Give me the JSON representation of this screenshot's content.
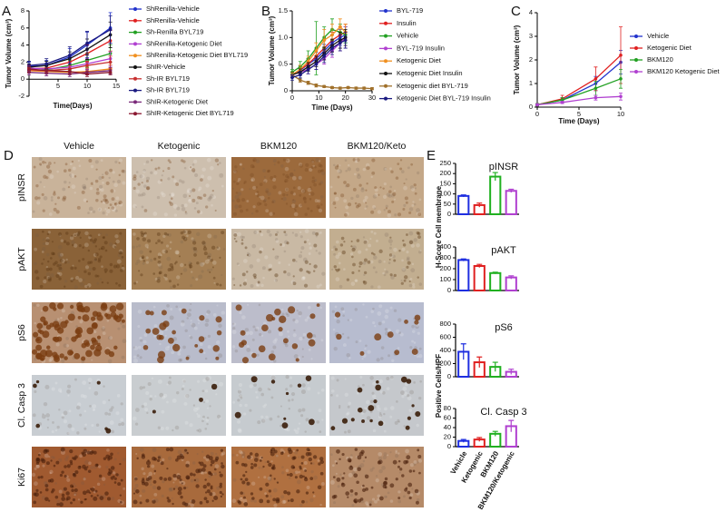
{
  "figure": {
    "panel_d": "D",
    "image_columns": [
      "Vehicle",
      "Ketogenic",
      "BKM120",
      "BKM120/Keto"
    ],
    "image_rows": [
      "pINSR",
      "pAKT",
      "pS6",
      "Cl. Casp 3",
      "Ki67"
    ]
  },
  "chart_data": [
    {
      "type": "line",
      "panel": "A",
      "xlabel": "Time(Days)",
      "ylabel": "Tumor Volume (cm³)",
      "x": [
        0,
        3,
        7,
        10,
        14
      ],
      "xlim": [
        0,
        15
      ],
      "xticks": [
        5,
        10,
        15
      ],
      "ylim": [
        -2,
        8
      ],
      "yticks": [
        -2,
        0,
        2,
        4,
        6,
        8
      ],
      "series": [
        {
          "name": "ShRenilla-Vehicle",
          "color": "#2233cc",
          "values": [
            1.5,
            1.6,
            2.6,
            4.0,
            6.0
          ],
          "errors": [
            0.5,
            0.6,
            1.0,
            1.5,
            1.8
          ]
        },
        {
          "name": "ShRenilla-Vehicle",
          "color": "#e02020",
          "values": [
            1.2,
            1.3,
            2.0,
            3.0,
            4.5
          ],
          "errors": [
            0.4,
            0.5,
            0.8,
            1.0,
            1.2
          ]
        },
        {
          "name": "Sh-Renilla BYL719",
          "color": "#22a022",
          "values": [
            1.0,
            1.1,
            1.6,
            2.2,
            3.0
          ],
          "errors": [
            0.3,
            0.4,
            0.6,
            0.8,
            1.0
          ]
        },
        {
          "name": "ShRenilla-Ketogenic Diet",
          "color": "#b040d0",
          "values": [
            1.3,
            1.2,
            1.4,
            1.8,
            2.4
          ],
          "errors": [
            0.4,
            0.4,
            0.5,
            0.6,
            0.8
          ]
        },
        {
          "name": "ShRenilla-Ketogenic Diet BYL719",
          "color": "#f09020",
          "values": [
            1.0,
            0.9,
            0.8,
            0.9,
            1.2
          ],
          "errors": [
            0.3,
            0.3,
            0.3,
            0.4,
            0.5
          ]
        },
        {
          "name": "ShIR-Vehicle",
          "color": "#111111",
          "values": [
            1.4,
            1.6,
            2.4,
            3.5,
            5.2
          ],
          "errors": [
            0.4,
            0.5,
            0.8,
            1.2,
            1.5
          ]
        },
        {
          "name": "Sh-IR BYL719",
          "color": "#c83030",
          "values": [
            1.1,
            1.0,
            1.2,
            1.6,
            2.0
          ],
          "errors": [
            0.3,
            0.3,
            0.4,
            0.5,
            0.7
          ]
        },
        {
          "name": "Sh-IR BYL719",
          "color": "#1a1a80",
          "values": [
            1.6,
            1.8,
            2.8,
            4.2,
            5.8
          ],
          "errors": [
            0.5,
            0.6,
            1.0,
            1.4,
            1.6
          ]
        },
        {
          "name": "ShIR-Ketogenic Diet",
          "color": "#7a2a7a",
          "values": [
            0.8,
            0.7,
            0.6,
            0.8,
            1.0
          ],
          "errors": [
            0.3,
            0.3,
            0.3,
            0.3,
            0.4
          ]
        },
        {
          "name": "ShIR-Ketogenic Diet BYL719",
          "color": "#8a1830",
          "values": [
            1.2,
            1.0,
            0.9,
            0.6,
            0.8
          ],
          "errors": [
            0.4,
            0.3,
            0.3,
            0.3,
            0.3
          ]
        }
      ]
    },
    {
      "type": "line",
      "panel": "B",
      "xlabel": "Time (Days)",
      "ylabel": "Tumor Volume (cm³)",
      "x": [
        0,
        3,
        6,
        9,
        12,
        15,
        18,
        20
      ],
      "xlim": [
        0,
        30
      ],
      "xticks": [
        0,
        10,
        20,
        30
      ],
      "ylim": [
        0,
        1.5
      ],
      "yticks": [
        0,
        0.5,
        {
          "value": 1,
          "label": "1.0"
        },
        1.5
      ],
      "series": [
        {
          "name": "BYL-719",
          "color": "#2233cc",
          "values": [
            0.3,
            0.38,
            0.5,
            0.6,
            0.75,
            0.9,
            1.0,
            1.05
          ],
          "errors": [
            0.05,
            0.08,
            0.1,
            0.12,
            0.12,
            0.15,
            0.15,
            0.15
          ]
        },
        {
          "name": "Insulin",
          "color": "#e02020",
          "values": [
            0.3,
            0.4,
            0.5,
            0.65,
            0.8,
            0.95,
            1.05,
            1.1
          ],
          "errors": [
            0.05,
            0.08,
            0.1,
            0.12,
            0.15,
            0.15,
            0.15,
            0.15
          ]
        },
        {
          "name": "Vehicle",
          "color": "#22a022",
          "values": [
            0.35,
            0.45,
            0.6,
            0.8,
            1.0,
            1.15,
            1.1,
            1.05
          ],
          "errors": [
            0.05,
            0.1,
            0.15,
            0.5,
            0.2,
            0.2,
            0.15,
            0.15
          ]
        },
        {
          "name": "BYL-719 Insulin",
          "color": "#b040d0",
          "values": [
            0.3,
            0.35,
            0.4,
            0.5,
            0.6,
            0.75,
            0.9,
            1.0
          ],
          "errors": [
            0.05,
            0.06,
            0.08,
            0.1,
            0.1,
            0.12,
            0.15,
            0.2
          ]
        },
        {
          "name": "Ketogenic Diet",
          "color": "#f09020",
          "values": [
            0.3,
            0.4,
            0.55,
            0.75,
            0.95,
            1.05,
            1.2,
            1.1
          ],
          "errors": [
            0.05,
            0.08,
            0.1,
            0.15,
            0.2,
            0.2,
            0.15,
            0.15
          ]
        },
        {
          "name": "Ketogenic Diet Insulin",
          "color": "#111111",
          "values": [
            0.3,
            0.35,
            0.45,
            0.55,
            0.7,
            0.85,
            0.95,
            1.0
          ],
          "errors": [
            0.05,
            0.06,
            0.08,
            0.1,
            0.12,
            0.12,
            0.15,
            0.15
          ]
        },
        {
          "name": "Ketogenic diet BYL-719",
          "color": "#a0702a",
          "x": [
            0,
            3,
            6,
            9,
            12,
            15,
            18,
            21,
            24,
            27,
            30
          ],
          "values": [
            0.3,
            0.2,
            0.15,
            0.1,
            0.08,
            0.06,
            0.05,
            0.06,
            0.05,
            0.05,
            0.04
          ],
          "errors": [
            0.05,
            0.04,
            0.03,
            0.03,
            0.02,
            0.02,
            0.02,
            0.02,
            0.02,
            0.02,
            0.02
          ]
        },
        {
          "name": "Ketogenic Diet BYL-719 Insulin",
          "color": "#1a1a80",
          "values": [
            0.25,
            0.3,
            0.4,
            0.5,
            0.65,
            0.8,
            0.9,
            0.95
          ],
          "errors": [
            0.05,
            0.06,
            0.08,
            0.1,
            0.12,
            0.12,
            0.15,
            0.15
          ]
        }
      ]
    },
    {
      "type": "line",
      "panel": "C",
      "xlabel": "Time (Days)",
      "ylabel": "Tumor Volume (cm³)",
      "x": [
        0,
        3,
        7,
        10
      ],
      "xlim": [
        0,
        10
      ],
      "xticks": [
        0,
        5,
        10
      ],
      "ylim": [
        0,
        4
      ],
      "yticks": [
        0,
        1,
        2,
        3,
        4
      ],
      "series": [
        {
          "name": "Vehicle",
          "color": "#2233cc",
          "values": [
            0.1,
            0.3,
            1.0,
            1.9
          ],
          "errors": [
            0.05,
            0.1,
            0.3,
            0.5
          ]
        },
        {
          "name": "Ketogenic Diet",
          "color": "#e02020",
          "values": [
            0.1,
            0.35,
            1.2,
            2.2
          ],
          "errors": [
            0.05,
            0.15,
            0.5,
            1.2
          ]
        },
        {
          "name": "BKM120",
          "color": "#22a022",
          "values": [
            0.1,
            0.3,
            0.8,
            1.2
          ],
          "errors": [
            0.05,
            0.1,
            0.3,
            0.4
          ]
        },
        {
          "name": "BKM120 Ketogenic Diet",
          "color": "#b040d0",
          "values": [
            0.1,
            0.2,
            0.4,
            0.45
          ],
          "errors": [
            0.03,
            0.05,
            0.1,
            0.15
          ]
        }
      ]
    },
    {
      "type": "bar",
      "panel": "E",
      "title": "pINSR",
      "ylabel": "H-Score Cell membrane",
      "colors": [
        "#1f2fe0",
        "#e02020",
        "#20b020",
        "#b040d0"
      ],
      "values": [
        90,
        45,
        185,
        115
      ],
      "errors": [
        5,
        10,
        20,
        8
      ],
      "ylim": [
        0,
        250
      ],
      "yticks": [
        0,
        50,
        100,
        150,
        200,
        250
      ]
    },
    {
      "type": "bar",
      "title": "pAKT",
      "colors": [
        "#1f2fe0",
        "#e02020",
        "#20b020",
        "#b040d0"
      ],
      "values": [
        280,
        225,
        160,
        120
      ],
      "errors": [
        10,
        15,
        8,
        15
      ],
      "ylim": [
        0,
        400
      ],
      "yticks": [
        0,
        100,
        200,
        300,
        400
      ]
    },
    {
      "type": "bar",
      "title": "pS6",
      "ylabel": "Positive Cells/HPF",
      "colors": [
        "#1f2fe0",
        "#e02020",
        "#20b020",
        "#b040d0"
      ],
      "values": [
        380,
        220,
        150,
        75
      ],
      "errors": [
        120,
        80,
        70,
        40
      ],
      "ylim": [
        0,
        800
      ],
      "yticks": [
        0,
        200,
        400,
        600,
        800
      ]
    },
    {
      "type": "bar",
      "title": "Cl. Casp 3",
      "colors": [
        "#1f2fe0",
        "#e02020",
        "#20b020",
        "#b040d0"
      ],
      "categories": [
        "Vehicle",
        "Ketogenic",
        "BKM120",
        "BKM120/Ketogenic"
      ],
      "values": [
        12,
        15,
        27,
        43
      ],
      "errors": [
        3,
        4,
        5,
        12
      ],
      "ylim": [
        0,
        80
      ],
      "yticks": [
        0,
        20,
        40,
        60,
        80
      ]
    }
  ]
}
